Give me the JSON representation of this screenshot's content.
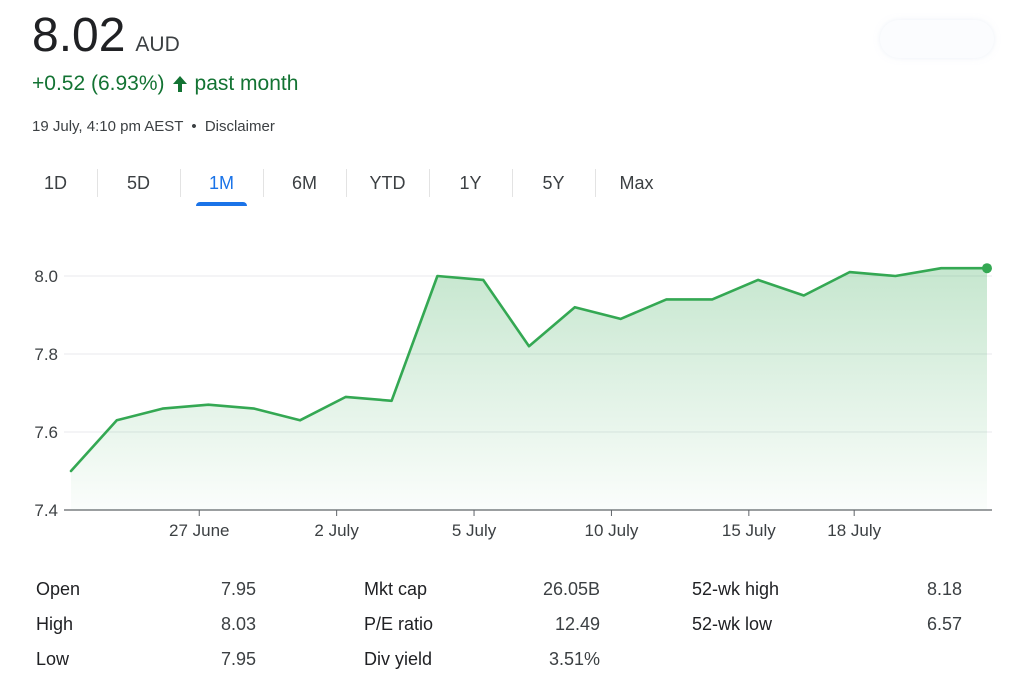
{
  "quote": {
    "price": "8.02",
    "currency": "AUD",
    "change": "+0.52 (6.93%)",
    "period": "past month",
    "timestamp": "19 July, 4:10 pm AEST",
    "separator": "•",
    "disclaimer": "Disclaimer"
  },
  "colors": {
    "positive": "#137333",
    "line": "#34a853",
    "active_tab": "#1a73e8"
  },
  "icons": {
    "change_arrow": "arrow-up-icon"
  },
  "range_tabs": [
    {
      "label": "1D",
      "active": false
    },
    {
      "label": "5D",
      "active": false
    },
    {
      "label": "1M",
      "active": true
    },
    {
      "label": "6M",
      "active": false
    },
    {
      "label": "YTD",
      "active": false
    },
    {
      "label": "1Y",
      "active": false
    },
    {
      "label": "5Y",
      "active": false
    },
    {
      "label": "Max",
      "active": false
    }
  ],
  "chart_data": {
    "type": "area",
    "title": "",
    "xlabel": "",
    "ylabel": "",
    "ylim": [
      7.4,
      8.1
    ],
    "yticks": [
      "8.0",
      "7.8",
      "7.6",
      "7.4"
    ],
    "ytick_values": [
      8.0,
      7.8,
      7.6,
      7.4
    ],
    "xtick_labels": [
      "27 June",
      "2 July",
      "5 July",
      "10 July",
      "15 July",
      "18 July"
    ],
    "xtick_index": [
      2.8,
      5.8,
      8.8,
      11.8,
      14.8,
      17.1
    ],
    "grid": true,
    "legend": "none",
    "series": [
      {
        "values": [
          7.5,
          7.63,
          7.66,
          7.67,
          7.66,
          7.63,
          7.69,
          7.68,
          8.0,
          7.99,
          7.82,
          7.92,
          7.89,
          7.94,
          7.94,
          7.99,
          7.95,
          8.01,
          8.0,
          8.02,
          8.02
        ]
      }
    ]
  },
  "stats": {
    "col1": [
      {
        "label": "Open",
        "value": "7.95"
      },
      {
        "label": "High",
        "value": "8.03"
      },
      {
        "label": "Low",
        "value": "7.95"
      }
    ],
    "col2": [
      {
        "label": "Mkt cap",
        "value": "26.05B"
      },
      {
        "label": "P/E ratio",
        "value": "12.49"
      },
      {
        "label": "Div yield",
        "value": "3.51%"
      }
    ],
    "col3": [
      {
        "label": "52-wk high",
        "value": "8.18"
      },
      {
        "label": "52-wk low",
        "value": "6.57"
      }
    ]
  }
}
